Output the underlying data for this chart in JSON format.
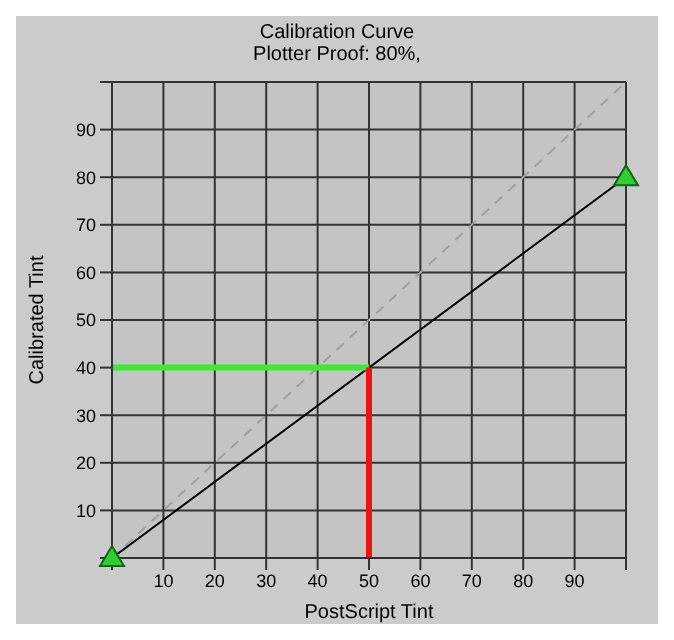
{
  "chart_data": {
    "type": "line",
    "title": "Calibration Curve",
    "subtitle": "Plotter Proof: 80%,",
    "xlabel": "PostScript Tint",
    "ylabel": "Calibrated Tint",
    "xlim": [
      0,
      100
    ],
    "ylim": [
      0,
      100
    ],
    "xticks": [
      {
        "value": 0,
        "label": null
      },
      10,
      20,
      30,
      40,
      50,
      60,
      70,
      80,
      90,
      {
        "value": 100,
        "label": null
      }
    ],
    "yticks": [
      {
        "value": 0,
        "label": null
      },
      10,
      20,
      30,
      40,
      50,
      60,
      70,
      80,
      90,
      {
        "value": 100,
        "label": null
      }
    ],
    "grid": true,
    "series": [
      {
        "color": "#a0a0a0",
        "x": [
          0,
          100
        ],
        "values": [
          0,
          100
        ],
        "line_style": "dashed",
        "marker": "none"
      },
      {
        "color": "#000000",
        "x": [
          0,
          100
        ],
        "values": [
          0,
          80
        ],
        "line_style": "solid",
        "marker": "triangle"
      },
      {
        "color": "#33ee33",
        "x": [
          0,
          50
        ],
        "values": [
          40,
          40
        ],
        "line_style": "solid",
        "marker": "none"
      },
      {
        "color": "#ee1111",
        "x": [
          50,
          50
        ],
        "values": [
          0,
          40
        ],
        "line_style": "solid",
        "marker": "none"
      }
    ]
  }
}
